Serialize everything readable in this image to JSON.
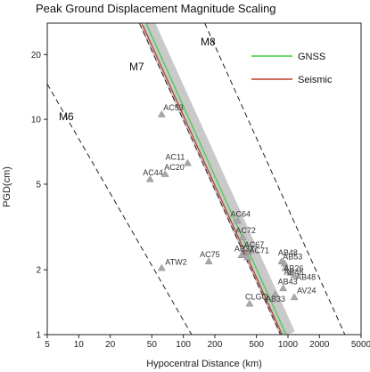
{
  "chart_data": {
    "type": "scatter",
    "title": "Peak Ground Displacement Magnitude Scaling",
    "xlabel": "Hypocentral Distance (km)",
    "ylabel": "PGD(cm)",
    "xscale": "log",
    "yscale": "log",
    "xlim": [
      5,
      5000
    ],
    "ylim": [
      1,
      28
    ],
    "xticks": [
      5,
      10,
      20,
      50,
      100,
      200,
      500,
      1000,
      2000,
      5000
    ],
    "yticks": [
      1,
      2,
      5,
      10,
      20
    ],
    "grid": false,
    "legend_position": "top-right",
    "legend": [
      {
        "label": "GNSS",
        "color": "#3ecf3e"
      },
      {
        "label": "Seismic",
        "color": "#c0392b"
      }
    ],
    "magnitude_lines": [
      {
        "label": "M6",
        "points": [
          [
            5,
            14.6
          ],
          [
            120,
            1.0
          ]
        ]
      },
      {
        "label": "M7",
        "points": [
          [
            38,
            28
          ],
          [
            850,
            1.0
          ]
        ]
      },
      {
        "label": "M8",
        "points": [
          [
            160,
            28
          ],
          [
            3500,
            1.0
          ]
        ]
      }
    ],
    "uncertainty_band": {
      "color": "#c9c9c9",
      "center": [
        [
          45,
          28
        ],
        [
          1000,
          1.0
        ]
      ]
    },
    "fit_lines": [
      {
        "name": "GNSS",
        "color": "#3ecf3e",
        "points": [
          [
            44,
            28
          ],
          [
            960,
            1.0
          ]
        ]
      },
      {
        "name": "Seismic",
        "color": "#c0392b",
        "points": [
          [
            40,
            28
          ],
          [
            880,
            1.0
          ]
        ]
      }
    ],
    "stations": [
      {
        "label": "AC53",
        "x": 62,
        "y": 10.6
      },
      {
        "label": "AC11",
        "x": 110,
        "y": 6.3
      },
      {
        "label": "AC20",
        "x": 67,
        "y": 5.6
      },
      {
        "label": "AC44",
        "x": 48,
        "y": 5.3
      },
      {
        "label": "AC64",
        "x": 330,
        "y": 3.4
      },
      {
        "label": "AC72",
        "x": 370,
        "y": 2.85
      },
      {
        "label": "AC67",
        "x": 420,
        "y": 2.45
      },
      {
        "label": "AB37",
        "x": 360,
        "y": 2.35
      },
      {
        "label": "AC71",
        "x": 410,
        "y": 2.3
      },
      {
        "label": "AC75",
        "x": 175,
        "y": 2.2
      },
      {
        "label": "ATW2",
        "x": 62,
        "y": 2.05
      },
      {
        "label": "AB48",
        "x": 870,
        "y": 2.2
      },
      {
        "label": "AB53",
        "x": 930,
        "y": 2.15
      },
      {
        "label": "AB26",
        "x": 950,
        "y": 2.05
      },
      {
        "label": "AB46",
        "x": 1050,
        "y": 1.95
      },
      {
        "label": "AB48b",
        "x": 1150,
        "y": 1.9
      },
      {
        "label": "AB43",
        "x": 900,
        "y": 1.65
      },
      {
        "label": "AB33",
        "x": 760,
        "y": 1.55
      },
      {
        "label": "AV24",
        "x": 1150,
        "y": 1.5
      },
      {
        "label": "CLGO",
        "x": 430,
        "y": 1.4
      }
    ],
    "station_label_text": {
      "AC53": "AC53",
      "AC11": "AC11",
      "AC20": "AC20",
      "AC44": "AC44",
      "AC64": "AC64",
      "AC72": "AC72",
      "AC67": "AC67",
      "AB37": "AB37",
      "AC71": "AC71",
      "AC75": "AC75",
      "ATW2": "ATW2",
      "AB48": "AB48",
      "AB53": "AB53",
      "AB26": "AB26",
      "AB46": "AB46",
      "AB48b": "AB48",
      "AB43": "AB43",
      "AB33": "AB33",
      "AV24": "AV24",
      "CLGO": "CLGO"
    }
  }
}
